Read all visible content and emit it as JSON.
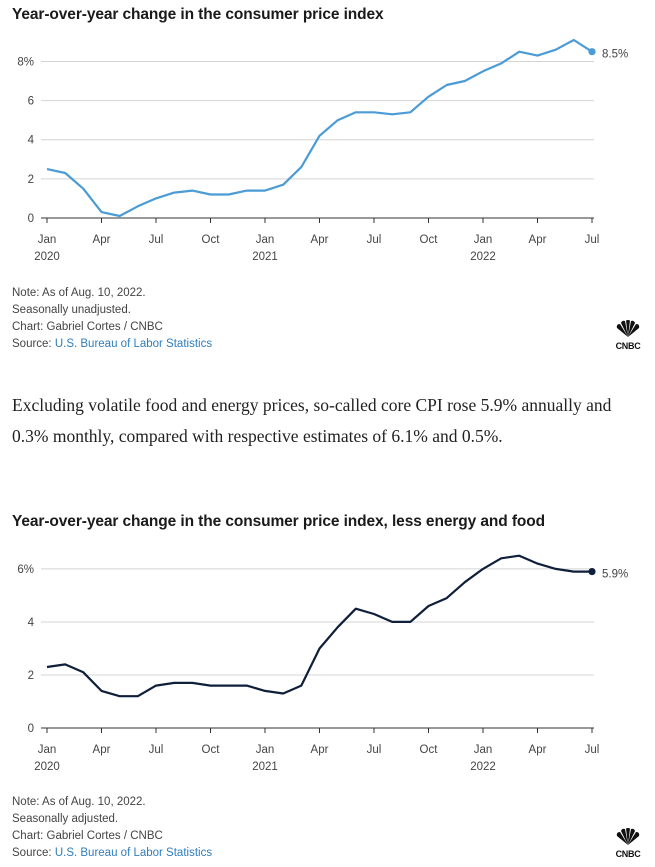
{
  "chart_data": [
    {
      "type": "line",
      "title": "Year-over-year change in the consumer price index",
      "x": [
        "2020-01",
        "2020-02",
        "2020-03",
        "2020-04",
        "2020-05",
        "2020-06",
        "2020-07",
        "2020-08",
        "2020-09",
        "2020-10",
        "2020-11",
        "2020-12",
        "2021-01",
        "2021-02",
        "2021-03",
        "2021-04",
        "2021-05",
        "2021-06",
        "2021-07",
        "2021-08",
        "2021-09",
        "2021-10",
        "2021-11",
        "2021-12",
        "2022-01",
        "2022-02",
        "2022-03",
        "2022-04",
        "2022-05",
        "2022-06",
        "2022-07"
      ],
      "series": [
        {
          "values": [
            2.5,
            2.3,
            1.5,
            0.3,
            0.1,
            0.6,
            1.0,
            1.3,
            1.4,
            1.2,
            1.2,
            1.4,
            1.4,
            1.7,
            2.6,
            4.2,
            5.0,
            5.4,
            5.4,
            5.3,
            5.4,
            6.2,
            6.8,
            7.0,
            7.5,
            7.9,
            8.5,
            8.3,
            8.6,
            9.1,
            8.5
          ]
        }
      ],
      "end_label": "8.5%",
      "y_ticks": [
        "0",
        "2",
        "4",
        "6",
        "8%"
      ],
      "y_tick_values": [
        0,
        2,
        4,
        6,
        8
      ],
      "x_ticks": [
        {
          "month": "Jan",
          "year": "2020",
          "index": 0
        },
        {
          "month": "Apr",
          "year": "",
          "index": 3
        },
        {
          "month": "Jul",
          "year": "",
          "index": 6
        },
        {
          "month": "Oct",
          "year": "",
          "index": 9
        },
        {
          "month": "Jan",
          "year": "2021",
          "index": 12
        },
        {
          "month": "Apr",
          "year": "",
          "index": 15
        },
        {
          "month": "Jul",
          "year": "",
          "index": 18
        },
        {
          "month": "Oct",
          "year": "",
          "index": 21
        },
        {
          "month": "Jan",
          "year": "2022",
          "index": 24
        },
        {
          "month": "Apr",
          "year": "",
          "index": 27
        },
        {
          "month": "Jul",
          "year": "",
          "index": 30
        }
      ],
      "ylim": [
        0,
        9.2
      ],
      "grid": true,
      "color": "#4a9bd6",
      "notes": [
        "Note: As of Aug. 10, 2022.",
        "Seasonally unadjusted.",
        "Chart: Gabriel Cortes / CNBC"
      ],
      "source_prefix": "Source: ",
      "source_link": "U.S. Bureau of Labor Statistics"
    },
    {
      "type": "line",
      "title": "Year-over-year change in the consumer price index, less energy and food",
      "x": [
        "2020-01",
        "2020-02",
        "2020-03",
        "2020-04",
        "2020-05",
        "2020-06",
        "2020-07",
        "2020-08",
        "2020-09",
        "2020-10",
        "2020-11",
        "2020-12",
        "2021-01",
        "2021-02",
        "2021-03",
        "2021-04",
        "2021-05",
        "2021-06",
        "2021-07",
        "2021-08",
        "2021-09",
        "2021-10",
        "2021-11",
        "2021-12",
        "2022-01",
        "2022-02",
        "2022-03",
        "2022-04",
        "2022-05",
        "2022-06",
        "2022-07"
      ],
      "series": [
        {
          "values": [
            2.3,
            2.4,
            2.1,
            1.4,
            1.2,
            1.2,
            1.6,
            1.7,
            1.7,
            1.6,
            1.6,
            1.6,
            1.4,
            1.3,
            1.6,
            3.0,
            3.8,
            4.5,
            4.3,
            4.0,
            4.0,
            4.6,
            4.9,
            5.5,
            6.0,
            6.4,
            6.5,
            6.2,
            6.0,
            5.9,
            5.9
          ]
        }
      ],
      "end_label": "5.9%",
      "y_ticks": [
        "0",
        "2",
        "4",
        "6%"
      ],
      "y_tick_values": [
        0,
        2,
        4,
        6
      ],
      "x_ticks": [
        {
          "month": "Jan",
          "year": "2020",
          "index": 0
        },
        {
          "month": "Apr",
          "year": "",
          "index": 3
        },
        {
          "month": "Jul",
          "year": "",
          "index": 6
        },
        {
          "month": "Oct",
          "year": "",
          "index": 9
        },
        {
          "month": "Jan",
          "year": "2021",
          "index": 12
        },
        {
          "month": "Apr",
          "year": "",
          "index": 15
        },
        {
          "month": "Jul",
          "year": "",
          "index": 18
        },
        {
          "month": "Oct",
          "year": "",
          "index": 21
        },
        {
          "month": "Jan",
          "year": "2022",
          "index": 24
        },
        {
          "month": "Apr",
          "year": "",
          "index": 27
        },
        {
          "month": "Jul",
          "year": "",
          "index": 30
        }
      ],
      "ylim": [
        0,
        6.6
      ],
      "grid": true,
      "color": "#0f1f3a",
      "notes": [
        "Note: As of Aug. 10, 2022.",
        "Seasonally adjusted.",
        "Chart: Gabriel Cortes / CNBC"
      ],
      "source_prefix": "Source: ",
      "source_link": "U.S. Bureau of Labor Statistics"
    }
  ],
  "article": {
    "paragraph": "Excluding volatile food and energy prices, so-called core CPI rose 5.9% annually and 0.3% monthly, compared with respective estimates of 6.1% and 0.5%."
  },
  "logo": {
    "text": "CNBC",
    "icon": "peacock-icon"
  }
}
